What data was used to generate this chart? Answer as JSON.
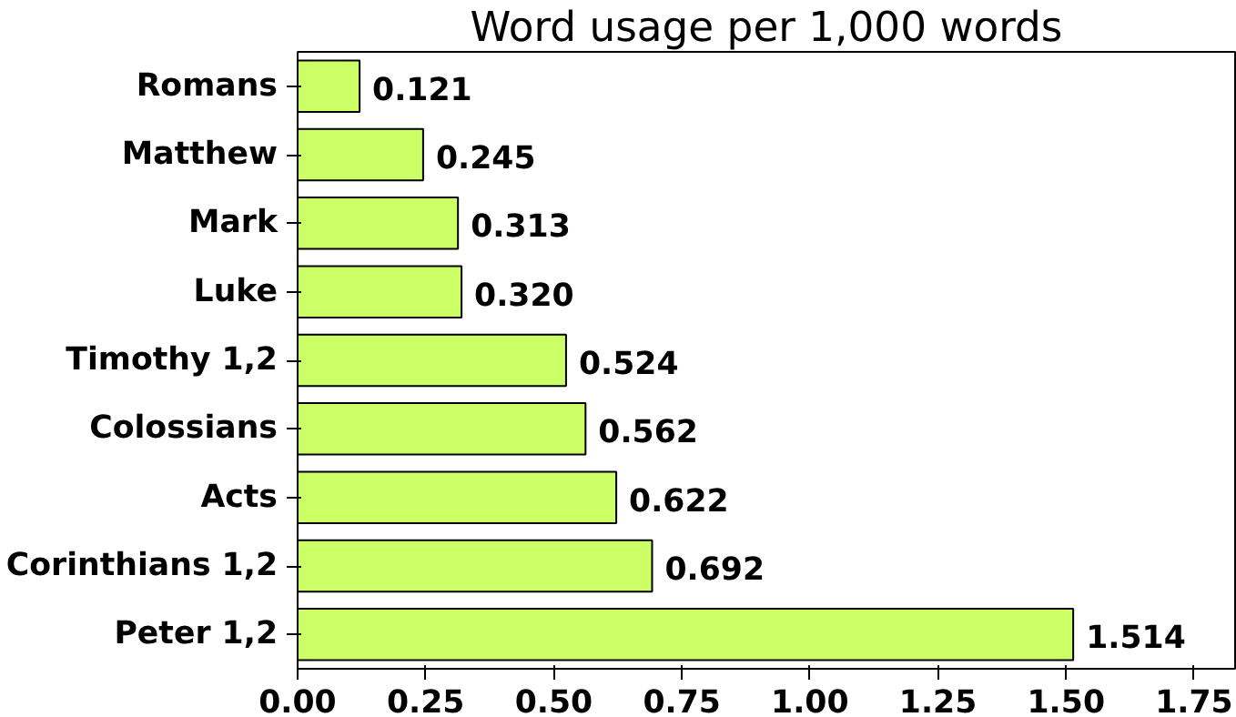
{
  "chart_data": {
    "type": "bar",
    "orientation": "horizontal",
    "title": "Word usage per 1,000 words",
    "categories": [
      "Romans",
      "Matthew",
      "Mark",
      "Luke",
      "Timothy 1,2",
      "Colossians",
      "Acts",
      "Corinthians 1,2",
      "Peter 1,2"
    ],
    "values": [
      0.121,
      0.245,
      0.313,
      0.32,
      0.524,
      0.562,
      0.622,
      0.692,
      1.514
    ],
    "value_labels": [
      "0.121",
      "0.245",
      "0.313",
      "0.320",
      "0.524",
      "0.562",
      "0.622",
      "0.692",
      "1.514"
    ],
    "color": "#ccff66",
    "xlim": [
      0,
      1.83
    ],
    "xticks": [
      {
        "value": 0,
        "label": "0.00"
      },
      {
        "value": 0.25,
        "label": "0.25"
      },
      {
        "value": 0.5,
        "label": "0.50"
      },
      {
        "value": 0.75,
        "label": "0.75"
      },
      {
        "value": 1.0,
        "label": "1.00"
      },
      {
        "value": 1.25,
        "label": "1.25"
      },
      {
        "value": 1.5,
        "label": "1.50"
      },
      {
        "value": 1.75,
        "label": "1.75"
      }
    ],
    "grid": false
  }
}
